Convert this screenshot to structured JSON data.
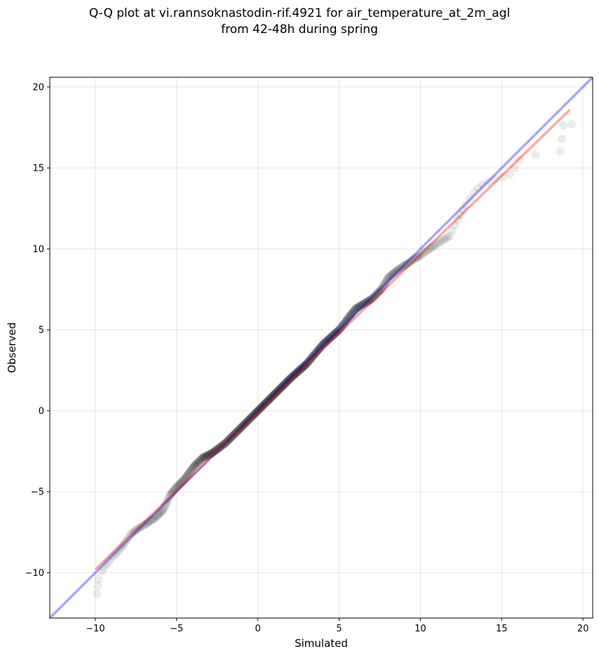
{
  "chart_data": {
    "type": "scatter",
    "title_line1": "Q-Q plot at vi.rannsoknastodin-rif.4921 for air_temperature_at_2m_agl",
    "title_line2": "from 42-48h during spring",
    "xlabel": "Simulated",
    "ylabel": "Observed",
    "xlim": [
      -12.8,
      20.6
    ],
    "ylim": [
      -12.8,
      20.6
    ],
    "x_ticks": [
      -10,
      -5,
      0,
      5,
      10,
      15,
      20
    ],
    "y_ticks": [
      -10,
      -5,
      0,
      5,
      10,
      15,
      20
    ],
    "x_tick_labels": [
      "−10",
      "−5",
      "0",
      "5",
      "10",
      "15",
      "20"
    ],
    "y_tick_labels": [
      "−10",
      "−5",
      "0",
      "5",
      "10",
      "15",
      "20"
    ],
    "grid": true,
    "quantile_anchors": [
      [
        -9.9,
        -11.3
      ],
      [
        -9.85,
        -10.8
      ],
      [
        -9.8,
        -10.4
      ],
      [
        -9.6,
        -9.9
      ],
      [
        -9.3,
        -9.5
      ],
      [
        -9.0,
        -9.1
      ],
      [
        -8.6,
        -8.7
      ],
      [
        -8.2,
        -8.2
      ],
      [
        -7.8,
        -7.6
      ],
      [
        -7.4,
        -7.3
      ],
      [
        -6.9,
        -7.0
      ],
      [
        -6.3,
        -6.6
      ],
      [
        -5.8,
        -6.1
      ],
      [
        -5.4,
        -5.2
      ],
      [
        -5.0,
        -4.7
      ],
      [
        -4.5,
        -4.2
      ],
      [
        -4.0,
        -3.5
      ],
      [
        -3.4,
        -2.9
      ],
      [
        -2.8,
        -2.6
      ],
      [
        -2.0,
        -2.0
      ],
      [
        -1.0,
        -1.0
      ],
      [
        0.0,
        0.0
      ],
      [
        1.0,
        1.0
      ],
      [
        2.0,
        2.0
      ],
      [
        3.0,
        2.9
      ],
      [
        4.0,
        4.1
      ],
      [
        5.0,
        5.0
      ],
      [
        6.0,
        6.3
      ],
      [
        7.0,
        6.9
      ],
      [
        7.6,
        7.5
      ],
      [
        8.0,
        8.2
      ],
      [
        8.6,
        8.7
      ],
      [
        9.2,
        9.1
      ],
      [
        10.0,
        9.6
      ],
      [
        11.0,
        10.3
      ],
      [
        11.8,
        10.8
      ],
      [
        12.3,
        11.8
      ],
      [
        12.8,
        12.7
      ],
      [
        13.3,
        13.5
      ],
      [
        13.8,
        14.0
      ],
      [
        14.6,
        14.3
      ],
      [
        15.5,
        14.6
      ],
      [
        15.8,
        15.0
      ],
      [
        16.1,
        15.5
      ],
      [
        17.1,
        15.8
      ],
      [
        18.6,
        16.0
      ],
      [
        18.7,
        16.8
      ],
      [
        18.8,
        17.6
      ],
      [
        19.3,
        17.7
      ]
    ],
    "n_points": 620,
    "reference_line": {
      "name": "1:1",
      "color": "#0000ff",
      "opacity": 0.35,
      "x": [
        -12.8,
        20.6
      ],
      "y": [
        -12.8,
        20.6
      ]
    },
    "fit_line": {
      "color": "#ff0000",
      "opacity": 0.35,
      "x": [
        -10.0,
        19.2
      ],
      "y": [
        -9.8,
        18.6
      ]
    },
    "point_color": "#000000",
    "point_opacity": 0.08
  }
}
